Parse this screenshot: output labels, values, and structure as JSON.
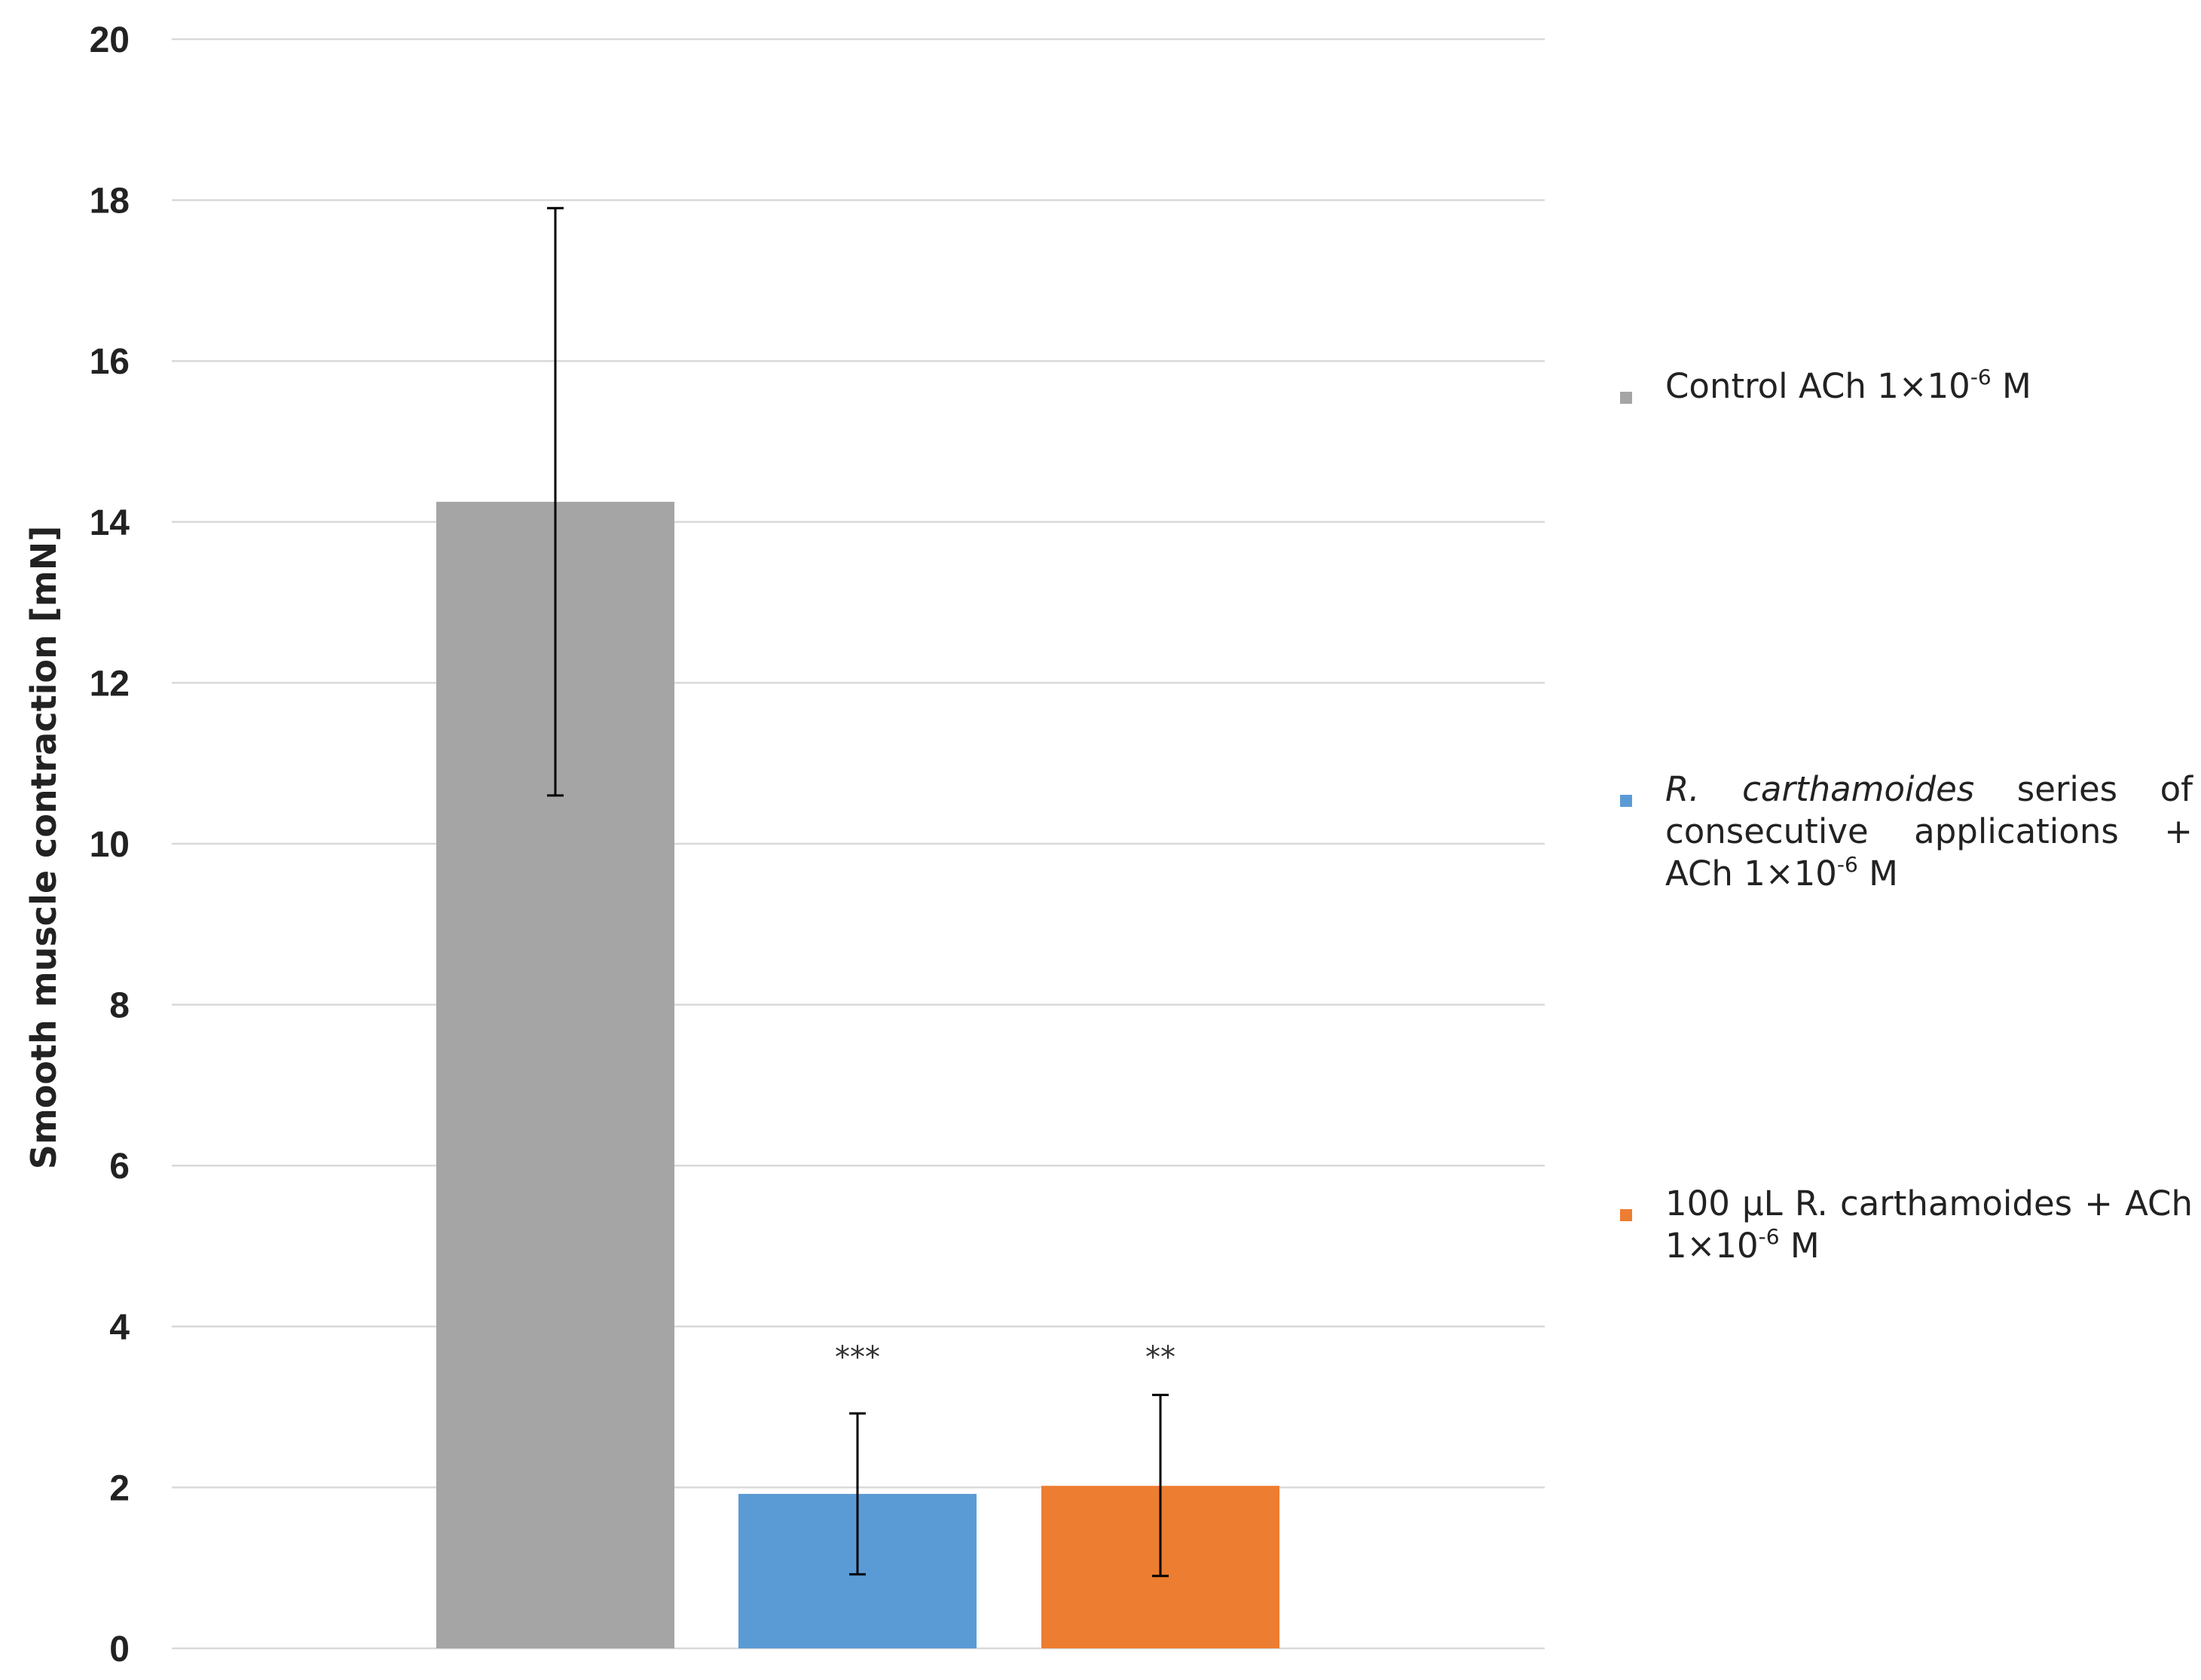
{
  "chart_data": {
    "type": "bar",
    "ylabel": "Smooth muscle contraction [mN]",
    "ylim": [
      0,
      20
    ],
    "yticks": [
      0,
      2,
      4,
      6,
      8,
      10,
      12,
      14,
      16,
      18,
      20
    ],
    "grid": true,
    "legend_placement": "right",
    "series": [
      {
        "name": "Control ACh 1×10-6 M",
        "value": 14.25,
        "error_low": 10.6,
        "error_high": 17.9,
        "color": "#a5a5a5",
        "significance": ""
      },
      {
        "name": "R. carthamoides series of consecutive applications + ACh 1×10-6 M",
        "value": 1.92,
        "error_low": 0.92,
        "error_high": 2.92,
        "color": "#5b9bd5",
        "significance": "***"
      },
      {
        "name": "100 µL R. carthamoides + ACh 1×10-6 M",
        "value": 2.02,
        "error_low": 0.9,
        "error_high": 3.15,
        "color": "#ed7d31",
        "significance": "**"
      }
    ]
  },
  "legend": {
    "item1": {
      "prefix": "Control ACh 1×10",
      "exp": "-6",
      "suffix": " M"
    },
    "item2": {
      "italic": "R. carthamoides",
      "middle": " series of consecutive applications + ACh 1×10",
      "exp": "-6",
      "suffix": " M"
    },
    "item3": {
      "prefix": "100 µL R. carthamoides + ACh 1×10",
      "exp": "-6",
      "suffix": " M"
    }
  }
}
